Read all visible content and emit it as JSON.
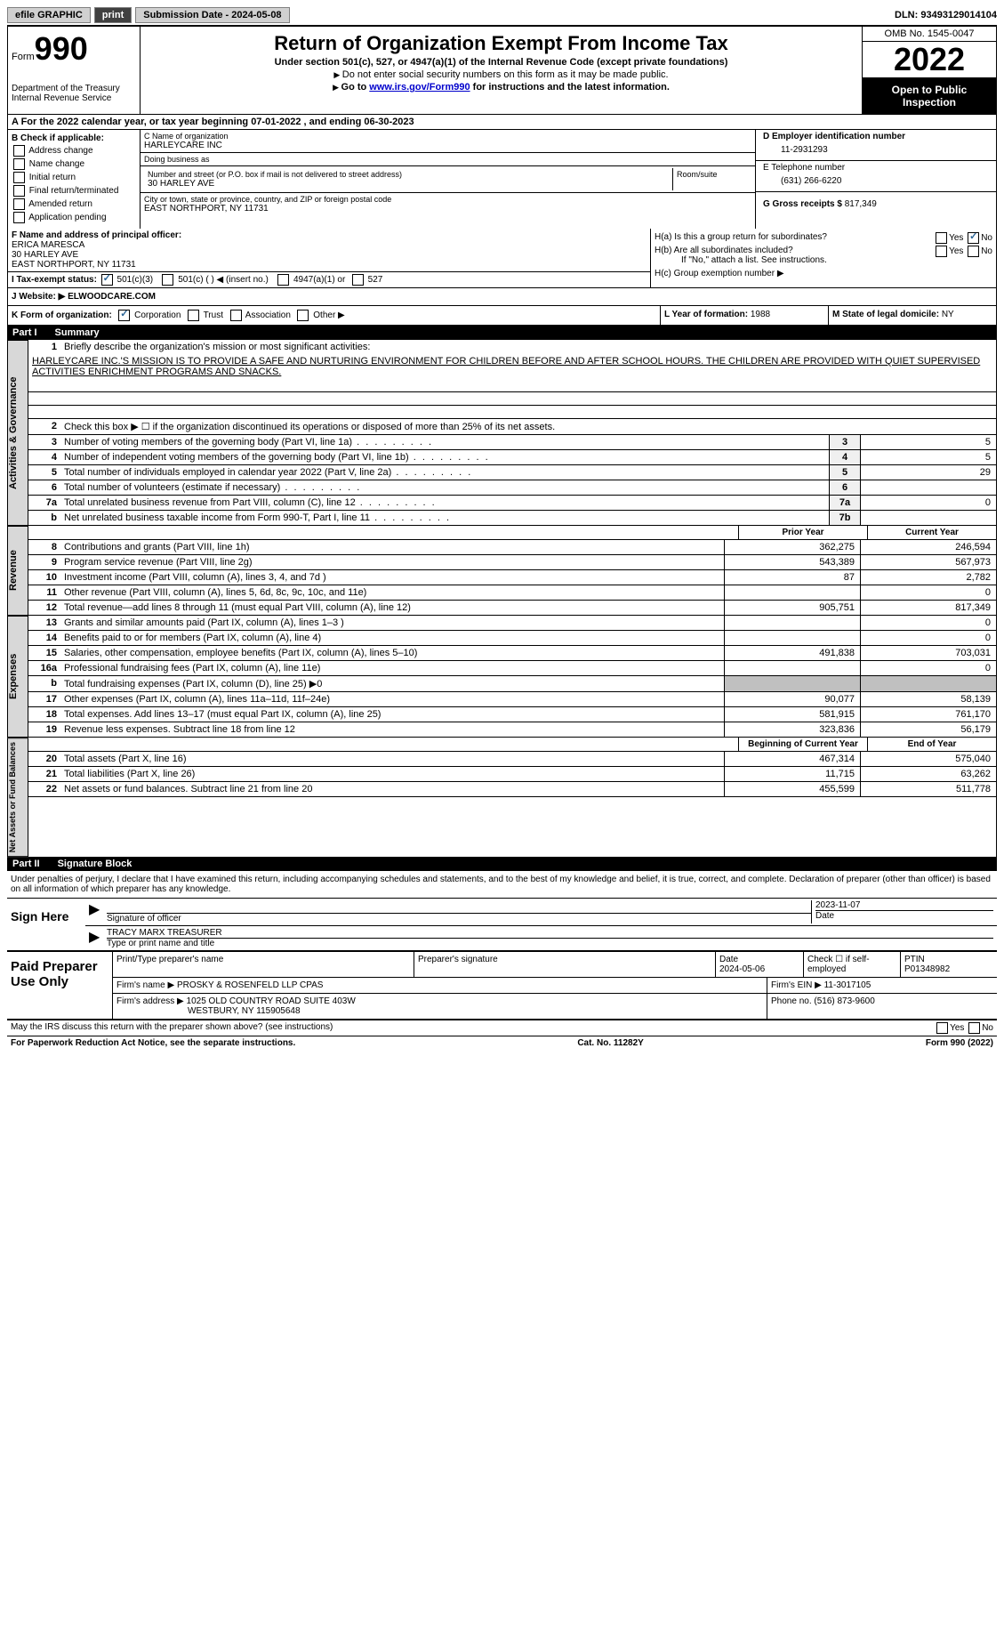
{
  "topbar": {
    "efile": "efile GRAPHIC",
    "print": "print",
    "sub_label": "Submission Date - ",
    "sub_date": "2024-05-08",
    "dln_label": "DLN: ",
    "dln": "93493129014104"
  },
  "header": {
    "form_label": "Form",
    "form_number": "990",
    "dept": "Department of the Treasury",
    "irs": "Internal Revenue Service",
    "title": "Return of Organization Exempt From Income Tax",
    "subtitle": "Under section 501(c), 527, or 4947(a)(1) of the Internal Revenue Code (except private foundations)",
    "note1": "Do not enter social security numbers on this form as it may be made public.",
    "note2_pre": "Go to ",
    "note2_link": "www.irs.gov/Form990",
    "note2_post": " for instructions and the latest information.",
    "omb": "OMB No. 1545-0047",
    "year": "2022",
    "open": "Open to Public Inspection"
  },
  "row_a": {
    "text": "A For the 2022 calendar year, or tax year beginning 07-01-2022    , and ending 06-30-2023"
  },
  "col_b": {
    "title": "B Check if applicable:",
    "items": [
      "Address change",
      "Name change",
      "Initial return",
      "Final return/terminated",
      "Amended return",
      "Application pending"
    ]
  },
  "col_c": {
    "name_lbl": "C Name of organization",
    "name": "HARLEYCARE INC",
    "dba_lbl": "Doing business as",
    "dba": "",
    "street_lbl": "Number and street (or P.O. box if mail is not delivered to street address)",
    "street": "30 HARLEY AVE",
    "room_lbl": "Room/suite",
    "room": "",
    "city_lbl": "City or town, state or province, country, and ZIP or foreign postal code",
    "city": "EAST NORTHPORT, NY  11731"
  },
  "col_d": {
    "ein_lbl": "D Employer identification number",
    "ein": "11-2931293",
    "phone_lbl": "E Telephone number",
    "phone": "(631) 266-6220",
    "gross_lbl": "G Gross receipts $ ",
    "gross": "817,349"
  },
  "officer": {
    "lbl": "F Name and address of principal officer:",
    "name": "ERICA MARESCA",
    "street": "30 HARLEY AVE",
    "city": "EAST NORTHPORT, NY  11731"
  },
  "h": {
    "a": "H(a)  Is this a group return for subordinates?",
    "b": "H(b)  Are all subordinates included?",
    "b2": "If \"No,\" attach a list. See instructions.",
    "c": "H(c)  Group exemption number ▶"
  },
  "tax_status": {
    "lbl": "I  Tax-exempt status:",
    "o1": "501(c)(3)",
    "o2": "501(c) (  ) ◀ (insert no.)",
    "o3": "4947(a)(1) or",
    "o4": "527"
  },
  "website": {
    "lbl": "J  Website: ▶ ",
    "val": "ELWOODCARE.COM"
  },
  "row_k": {
    "k": "K Form of organization:",
    "corp": "Corporation",
    "trust": "Trust",
    "assoc": "Association",
    "other": "Other ▶",
    "l": "L Year of formation: ",
    "l_val": "1988",
    "m": "M State of legal domicile: ",
    "m_val": "NY"
  },
  "part1": {
    "label": "Part I",
    "title": "Summary"
  },
  "mission": {
    "lbl": "Briefly describe the organization's mission or most significant activities:",
    "text": "HARLEYCARE INC.'S MISSION IS TO PROVIDE A SAFE AND NURTURING ENVIRONMENT FOR CHILDREN BEFORE AND AFTER SCHOOL HOURS. THE CHILDREN ARE PROVIDED WITH QUIET SUPERVISED ACTIVITIES ENRICHMENT PROGRAMS AND SNACKS."
  },
  "lines": {
    "l2": "Check this box ▶ ☐  if the organization discontinued its operations or disposed of more than 25% of its net assets.",
    "l3": "Number of voting members of the governing body (Part VI, line 1a)",
    "l4": "Number of independent voting members of the governing body (Part VI, line 1b)",
    "l5": "Total number of individuals employed in calendar year 2022 (Part V, line 2a)",
    "l6": "Total number of volunteers (estimate if necessary)",
    "l7a": "Total unrelated business revenue from Part VIII, column (C), line 12",
    "l7b": "Net unrelated business taxable income from Form 990-T, Part I, line 11"
  },
  "vals": {
    "v3": "5",
    "v4": "5",
    "v5": "29",
    "v6": "",
    "v7a": "0",
    "v7b": ""
  },
  "headers": {
    "prior": "Prior Year",
    "current": "Current Year",
    "begin": "Beginning of Current Year",
    "end": "End of Year"
  },
  "revenue": [
    {
      "n": "8",
      "d": "Contributions and grants (Part VIII, line 1h)",
      "p": "362,275",
      "c": "246,594"
    },
    {
      "n": "9",
      "d": "Program service revenue (Part VIII, line 2g)",
      "p": "543,389",
      "c": "567,973"
    },
    {
      "n": "10",
      "d": "Investment income (Part VIII, column (A), lines 3, 4, and 7d )",
      "p": "87",
      "c": "2,782"
    },
    {
      "n": "11",
      "d": "Other revenue (Part VIII, column (A), lines 5, 6d, 8c, 9c, 10c, and 11e)",
      "p": "",
      "c": "0"
    },
    {
      "n": "12",
      "d": "Total revenue—add lines 8 through 11 (must equal Part VIII, column (A), line 12)",
      "p": "905,751",
      "c": "817,349"
    }
  ],
  "expenses": [
    {
      "n": "13",
      "d": "Grants and similar amounts paid (Part IX, column (A), lines 1–3 )",
      "p": "",
      "c": "0"
    },
    {
      "n": "14",
      "d": "Benefits paid to or for members (Part IX, column (A), line 4)",
      "p": "",
      "c": "0"
    },
    {
      "n": "15",
      "d": "Salaries, other compensation, employee benefits (Part IX, column (A), lines 5–10)",
      "p": "491,838",
      "c": "703,031"
    },
    {
      "n": "16a",
      "d": "Professional fundraising fees (Part IX, column (A), line 11e)",
      "p": "",
      "c": "0"
    },
    {
      "n": "b",
      "d": "Total fundraising expenses (Part IX, column (D), line 25) ▶0",
      "p": "SHADE",
      "c": "SHADE"
    },
    {
      "n": "17",
      "d": "Other expenses (Part IX, column (A), lines 11a–11d, 11f–24e)",
      "p": "90,077",
      "c": "58,139"
    },
    {
      "n": "18",
      "d": "Total expenses. Add lines 13–17 (must equal Part IX, column (A), line 25)",
      "p": "581,915",
      "c": "761,170"
    },
    {
      "n": "19",
      "d": "Revenue less expenses. Subtract line 18 from line 12",
      "p": "323,836",
      "c": "56,179"
    }
  ],
  "netassets": [
    {
      "n": "20",
      "d": "Total assets (Part X, line 16)",
      "p": "467,314",
      "c": "575,040"
    },
    {
      "n": "21",
      "d": "Total liabilities (Part X, line 26)",
      "p": "11,715",
      "c": "63,262"
    },
    {
      "n": "22",
      "d": "Net assets or fund balances. Subtract line 21 from line 20",
      "p": "455,599",
      "c": "511,778"
    }
  ],
  "sidelabels": {
    "gov": "Activities & Governance",
    "rev": "Revenue",
    "exp": "Expenses",
    "net": "Net Assets or Fund Balances"
  },
  "part2": {
    "label": "Part II",
    "title": "Signature Block"
  },
  "sig": {
    "penalty": "Under penalties of perjury, I declare that I have examined this return, including accompanying schedules and statements, and to the best of my knowledge and belief, it is true, correct, and complete. Declaration of preparer (other than officer) is based on all information of which preparer has any knowledge.",
    "sign_here": "Sign Here",
    "sig_officer": "Signature of officer",
    "date": "Date",
    "date_val": "2023-11-07",
    "name_title": "TRACY MARX  TREASURER",
    "type_name": "Type or print name and title"
  },
  "paid": {
    "title": "Paid Preparer Use Only",
    "print_name": "Print/Type preparer's name",
    "prep_sig": "Preparer's signature",
    "date_lbl": "Date",
    "date_val": "2024-05-06",
    "check_lbl": "Check ☐ if self-employed",
    "ptin_lbl": "PTIN",
    "ptin": "P01348982",
    "firm_name_lbl": "Firm's name    ▶ ",
    "firm_name": "PROSKY & ROSENFELD LLP CPAS",
    "firm_ein_lbl": "Firm's EIN ▶ ",
    "firm_ein": "11-3017105",
    "firm_addr_lbl": "Firm's address ▶ ",
    "firm_addr1": "1025 OLD COUNTRY ROAD SUITE 403W",
    "firm_addr2": "WESTBURY, NY  115905648",
    "phone_lbl": "Phone no. ",
    "phone": "(516) 873-9600"
  },
  "footer": {
    "discuss": "May the IRS discuss this return with the preparer shown above? (see instructions)",
    "paperwork": "For Paperwork Reduction Act Notice, see the separate instructions.",
    "cat": "Cat. No. 11282Y",
    "form": "Form 990 (2022)"
  }
}
